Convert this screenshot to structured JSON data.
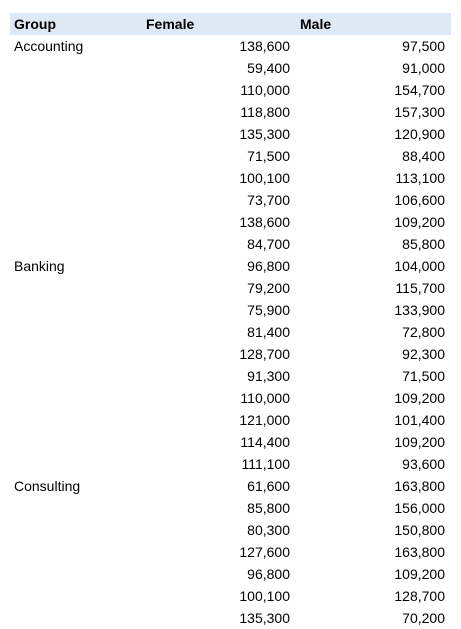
{
  "table": {
    "headers": {
      "group": "Group",
      "female": "Female",
      "male": "Male"
    },
    "rows": [
      {
        "group": "Accounting",
        "female": "138,600",
        "male": "97,500"
      },
      {
        "group": "",
        "female": "59,400",
        "male": "91,000"
      },
      {
        "group": "",
        "female": "110,000",
        "male": "154,700"
      },
      {
        "group": "",
        "female": "118,800",
        "male": "157,300"
      },
      {
        "group": "",
        "female": "135,300",
        "male": "120,900"
      },
      {
        "group": "",
        "female": "71,500",
        "male": "88,400"
      },
      {
        "group": "",
        "female": "100,100",
        "male": "113,100"
      },
      {
        "group": "",
        "female": "73,700",
        "male": "106,600"
      },
      {
        "group": "",
        "female": "138,600",
        "male": "109,200"
      },
      {
        "group": "",
        "female": "84,700",
        "male": "85,800"
      },
      {
        "group": "Banking",
        "female": "96,800",
        "male": "104,000"
      },
      {
        "group": "",
        "female": "79,200",
        "male": "115,700"
      },
      {
        "group": "",
        "female": "75,900",
        "male": "133,900"
      },
      {
        "group": "",
        "female": "81,400",
        "male": "72,800"
      },
      {
        "group": "",
        "female": "128,700",
        "male": "92,300"
      },
      {
        "group": "",
        "female": "91,300",
        "male": "71,500"
      },
      {
        "group": "",
        "female": "110,000",
        "male": "109,200"
      },
      {
        "group": "",
        "female": "121,000",
        "male": "101,400"
      },
      {
        "group": "",
        "female": "114,400",
        "male": "109,200"
      },
      {
        "group": "",
        "female": "111,100",
        "male": "93,600"
      },
      {
        "group": "Consulting",
        "female": "61,600",
        "male": "163,800"
      },
      {
        "group": "",
        "female": "85,800",
        "male": "156,000"
      },
      {
        "group": "",
        "female": "80,300",
        "male": "150,800"
      },
      {
        "group": "",
        "female": "127,600",
        "male": "163,800"
      },
      {
        "group": "",
        "female": "96,800",
        "male": "109,200"
      },
      {
        "group": "",
        "female": "100,100",
        "male": "128,700"
      },
      {
        "group": "",
        "female": "135,300",
        "male": "70,200"
      }
    ]
  }
}
